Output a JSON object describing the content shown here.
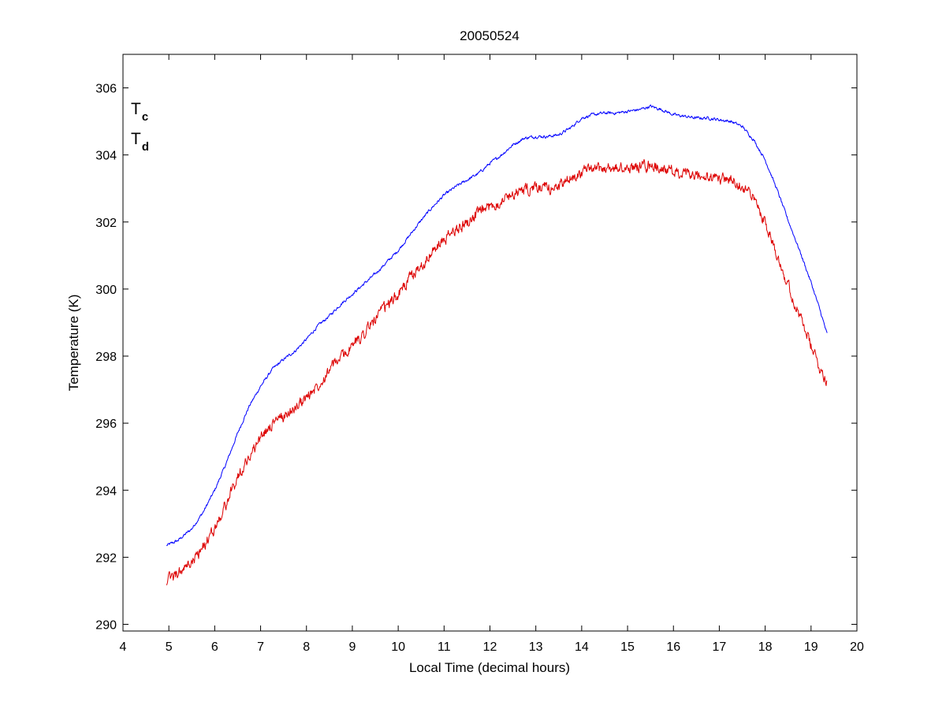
{
  "chart_data": {
    "type": "line",
    "title": "20050524",
    "xlabel": "Local Time (decimal hours)",
    "ylabel": "Temperature (K)",
    "xlim": [
      4,
      20
    ],
    "ylim": [
      289.8,
      307
    ],
    "xticks": [
      "4",
      "5",
      "6",
      "7",
      "8",
      "9",
      "10",
      "11",
      "12",
      "13",
      "14",
      "15",
      "16",
      "17",
      "18",
      "19",
      "20"
    ],
    "yticks": [
      "290",
      "292",
      "294",
      "296",
      "298",
      "300",
      "302",
      "304",
      "306"
    ],
    "grid": false,
    "legend": {
      "placement": "top-left"
    },
    "series": [
      {
        "name_main": "T",
        "name_sub": "c",
        "color": "#0000ff",
        "noise": 0.08,
        "x": [
          4.95,
          5.2,
          5.5,
          5.75,
          6.0,
          6.25,
          6.5,
          6.75,
          7.0,
          7.25,
          7.5,
          7.75,
          8.0,
          8.25,
          8.5,
          8.75,
          9.0,
          9.25,
          9.5,
          9.75,
          10.0,
          10.25,
          10.5,
          10.75,
          11.0,
          11.25,
          11.5,
          11.75,
          12.0,
          12.25,
          12.5,
          12.75,
          13.0,
          13.25,
          13.5,
          13.75,
          14.0,
          14.25,
          14.5,
          14.75,
          15.0,
          15.25,
          15.5,
          15.75,
          16.0,
          16.25,
          16.5,
          16.75,
          17.0,
          17.25,
          17.5,
          17.75,
          18.0,
          18.25,
          18.5,
          18.75,
          19.0,
          19.2,
          19.35
        ],
        "y": [
          292.35,
          292.5,
          292.85,
          293.35,
          294.0,
          294.8,
          295.7,
          296.5,
          297.1,
          297.6,
          297.9,
          298.15,
          298.5,
          298.9,
          299.2,
          299.55,
          299.85,
          300.15,
          300.45,
          300.8,
          301.15,
          301.6,
          302.05,
          302.45,
          302.8,
          303.05,
          303.25,
          303.45,
          303.75,
          304.0,
          304.3,
          304.5,
          304.55,
          304.55,
          304.6,
          304.8,
          305.1,
          305.2,
          305.25,
          305.25,
          305.3,
          305.35,
          305.45,
          305.35,
          305.2,
          305.15,
          305.1,
          305.1,
          305.05,
          305.0,
          304.85,
          304.45,
          303.85,
          303.0,
          302.05,
          301.15,
          300.2,
          299.35,
          298.65
        ]
      },
      {
        "name_main": "T",
        "name_sub": "d",
        "color": "#dd0000",
        "noise": 0.3,
        "x": [
          4.95,
          5.2,
          5.5,
          5.75,
          6.0,
          6.25,
          6.5,
          6.75,
          7.0,
          7.25,
          7.5,
          7.75,
          8.0,
          8.25,
          8.5,
          8.75,
          9.0,
          9.25,
          9.5,
          9.75,
          10.0,
          10.25,
          10.5,
          10.75,
          11.0,
          11.25,
          11.5,
          11.75,
          12.0,
          12.25,
          12.5,
          12.75,
          13.0,
          13.25,
          13.5,
          13.75,
          14.0,
          14.25,
          14.5,
          14.75,
          15.0,
          15.25,
          15.5,
          15.75,
          16.0,
          16.25,
          16.5,
          16.75,
          17.0,
          17.25,
          17.5,
          17.75,
          18.0,
          18.25,
          18.5,
          18.75,
          19.0,
          19.2,
          19.35
        ],
        "y": [
          291.3,
          291.5,
          291.85,
          292.3,
          292.85,
          293.6,
          294.4,
          295.0,
          295.55,
          296.0,
          296.2,
          296.45,
          296.75,
          297.15,
          297.6,
          297.95,
          298.3,
          298.7,
          299.1,
          299.5,
          299.85,
          300.3,
          300.7,
          301.1,
          301.45,
          301.75,
          302.0,
          302.25,
          302.45,
          302.65,
          302.85,
          302.95,
          303.0,
          303.0,
          303.05,
          303.3,
          303.5,
          303.55,
          303.6,
          303.6,
          303.6,
          303.65,
          303.7,
          303.6,
          303.5,
          303.4,
          303.35,
          303.3,
          303.3,
          303.25,
          303.1,
          302.7,
          302.0,
          301.1,
          300.1,
          299.2,
          298.3,
          297.6,
          297.25
        ]
      }
    ]
  }
}
